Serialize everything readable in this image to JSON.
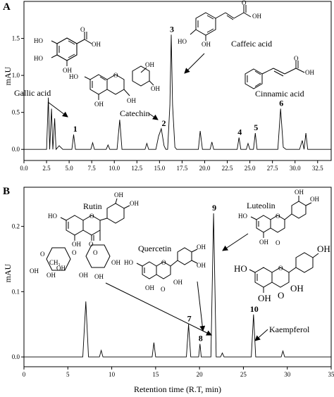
{
  "panels": [
    {
      "id": "A",
      "label": "A",
      "ylabel": "mAU",
      "xlabel": "",
      "trace": [
        [
          0,
          0
        ],
        [
          2.5,
          0
        ],
        [
          2.7,
          0.7
        ],
        [
          2.85,
          0
        ],
        [
          3.05,
          0.55
        ],
        [
          3.2,
          0
        ],
        [
          3.4,
          0.42
        ],
        [
          3.55,
          0
        ],
        [
          3.9,
          0.05
        ],
        [
          4.3,
          0
        ],
        [
          5.3,
          0
        ],
        [
          5.5,
          0.2
        ],
        [
          5.7,
          0
        ],
        [
          7.4,
          0
        ],
        [
          7.6,
          0.09
        ],
        [
          7.8,
          0
        ],
        [
          9.1,
          0
        ],
        [
          9.3,
          0.06
        ],
        [
          9.5,
          0
        ],
        [
          10.3,
          0
        ],
        [
          10.6,
          0.4
        ],
        [
          10.85,
          0
        ],
        [
          13.4,
          0
        ],
        [
          13.6,
          0.08
        ],
        [
          13.8,
          0
        ],
        [
          14.6,
          0
        ],
        [
          14.9,
          0.18
        ],
        [
          15.2,
          0.28
        ],
        [
          15.5,
          0.05
        ],
        [
          15.7,
          0
        ],
        [
          15.9,
          0
        ],
        [
          16.15,
          0.6
        ],
        [
          16.3,
          1.55
        ],
        [
          16.45,
          0.6
        ],
        [
          16.7,
          0.03
        ],
        [
          16.9,
          0
        ],
        [
          19.3,
          0
        ],
        [
          19.5,
          0.25
        ],
        [
          19.75,
          0
        ],
        [
          20.6,
          0
        ],
        [
          20.8,
          0.1
        ],
        [
          21,
          0
        ],
        [
          23.6,
          0
        ],
        [
          23.8,
          0.16
        ],
        [
          24,
          0
        ],
        [
          24.6,
          0
        ],
        [
          24.8,
          0.08
        ],
        [
          25,
          0
        ],
        [
          25.4,
          0
        ],
        [
          25.6,
          0.22
        ],
        [
          25.8,
          0
        ],
        [
          28.1,
          0
        ],
        [
          28.4,
          0.55
        ],
        [
          28.7,
          0.03
        ],
        [
          29,
          0
        ],
        [
          30.5,
          0
        ],
        [
          30.8,
          0.12
        ],
        [
          31,
          0
        ],
        [
          31.2,
          0.22
        ],
        [
          31.4,
          0
        ],
        [
          34,
          0
        ]
      ],
      "peaks": [
        {
          "label": "1",
          "x": 5.6
        },
        {
          "label": "2",
          "x": 15.4
        },
        {
          "label": "3",
          "x": 16.3
        },
        {
          "label": "4",
          "x": 23.8
        },
        {
          "label": "5",
          "x": 25.6
        },
        {
          "label": "6",
          "x": 28.4
        }
      ],
      "compounds": [
        {
          "name": "Gallic acid"
        },
        {
          "name": "Catechin"
        },
        {
          "name": "Caffeic acid"
        },
        {
          "name": "Cinnamic acid"
        }
      ],
      "xticks": [
        "0.0",
        "2.5",
        "5.0",
        "7.5",
        "10.0",
        "12.5",
        "15.0",
        "17.5",
        "20.0",
        "22.5",
        "25.0",
        "27.5",
        "30.0",
        "32.5"
      ],
      "yticks": [
        "0.0",
        "0.5",
        "1.0",
        "1.5"
      ]
    },
    {
      "id": "B",
      "label": "B",
      "ylabel": "mAU",
      "xlabel": "Retention time (R.T, min)",
      "trace": [
        [
          0,
          0
        ],
        [
          6.7,
          0
        ],
        [
          7.05,
          0.085
        ],
        [
          7.35,
          0
        ],
        [
          8.6,
          0
        ],
        [
          8.8,
          0.01
        ],
        [
          9,
          0
        ],
        [
          14.6,
          0
        ],
        [
          14.8,
          0.022
        ],
        [
          15,
          0
        ],
        [
          18.5,
          0
        ],
        [
          18.75,
          0.05
        ],
        [
          19,
          0
        ],
        [
          19.9,
          0
        ],
        [
          20.05,
          0.02
        ],
        [
          20.2,
          0
        ],
        [
          21.3,
          0
        ],
        [
          21.6,
          0.22
        ],
        [
          21.9,
          0
        ],
        [
          22.4,
          0
        ],
        [
          22.6,
          0.006
        ],
        [
          22.8,
          0
        ],
        [
          25.9,
          0
        ],
        [
          26.15,
          0.065
        ],
        [
          26.4,
          0
        ],
        [
          29.3,
          0
        ],
        [
          29.5,
          0.009
        ],
        [
          29.7,
          0
        ],
        [
          35,
          0
        ]
      ],
      "peaks": [
        {
          "label": "7",
          "x": 18.75
        },
        {
          "label": "8",
          "x": 20.05
        },
        {
          "label": "9",
          "x": 21.6
        },
        {
          "label": "10",
          "x": 26.15
        }
      ],
      "compounds": [
        {
          "name": "Rutin"
        },
        {
          "name": "Luteolin"
        },
        {
          "name": "Quercetin"
        },
        {
          "name": "Kaempferol"
        }
      ],
      "xticks": [
        "0",
        "5",
        "10",
        "15",
        "20",
        "25",
        "30",
        "35"
      ],
      "yticks": [
        "0.0",
        "0.1",
        "0.2"
      ]
    }
  ],
  "chart_data": [
    {
      "type": "line",
      "title": "",
      "panel": "A",
      "xlabel": "",
      "ylabel": "mAU",
      "xlim": [
        0,
        34
      ],
      "ylim": [
        -0.15,
        2.0
      ],
      "grid": false,
      "peaks": [
        {
          "label": "1",
          "x": 5.6,
          "y": 0.2,
          "compound": "Gallic acid"
        },
        {
          "label": "2",
          "x": 15.4,
          "y": 0.28,
          "compound": "Catechin"
        },
        {
          "label": "3",
          "x": 16.3,
          "y": 1.55,
          "compound": "Caffeic acid"
        },
        {
          "label": "4",
          "x": 23.8,
          "y": 0.16
        },
        {
          "label": "5",
          "x": 25.6,
          "y": 0.22
        },
        {
          "label": "6",
          "x": 28.4,
          "y": 0.55,
          "compound": "Cinnamic acid"
        }
      ]
    },
    {
      "type": "line",
      "title": "",
      "panel": "B",
      "xlabel": "Retention time (R.T, min)",
      "ylabel": "mAU",
      "xlim": [
        0,
        35
      ],
      "ylim": [
        -0.015,
        0.26
      ],
      "grid": false,
      "peaks": [
        {
          "label": "7",
          "x": 18.75,
          "y": 0.05,
          "compound": "Rutin"
        },
        {
          "label": "8",
          "x": 20.05,
          "y": 0.02,
          "compound": "Quercetin"
        },
        {
          "label": "9",
          "x": 21.6,
          "y": 0.22,
          "compound": "Luteolin"
        },
        {
          "label": "10",
          "x": 26.15,
          "y": 0.065,
          "compound": "Kaempferol"
        }
      ]
    }
  ]
}
